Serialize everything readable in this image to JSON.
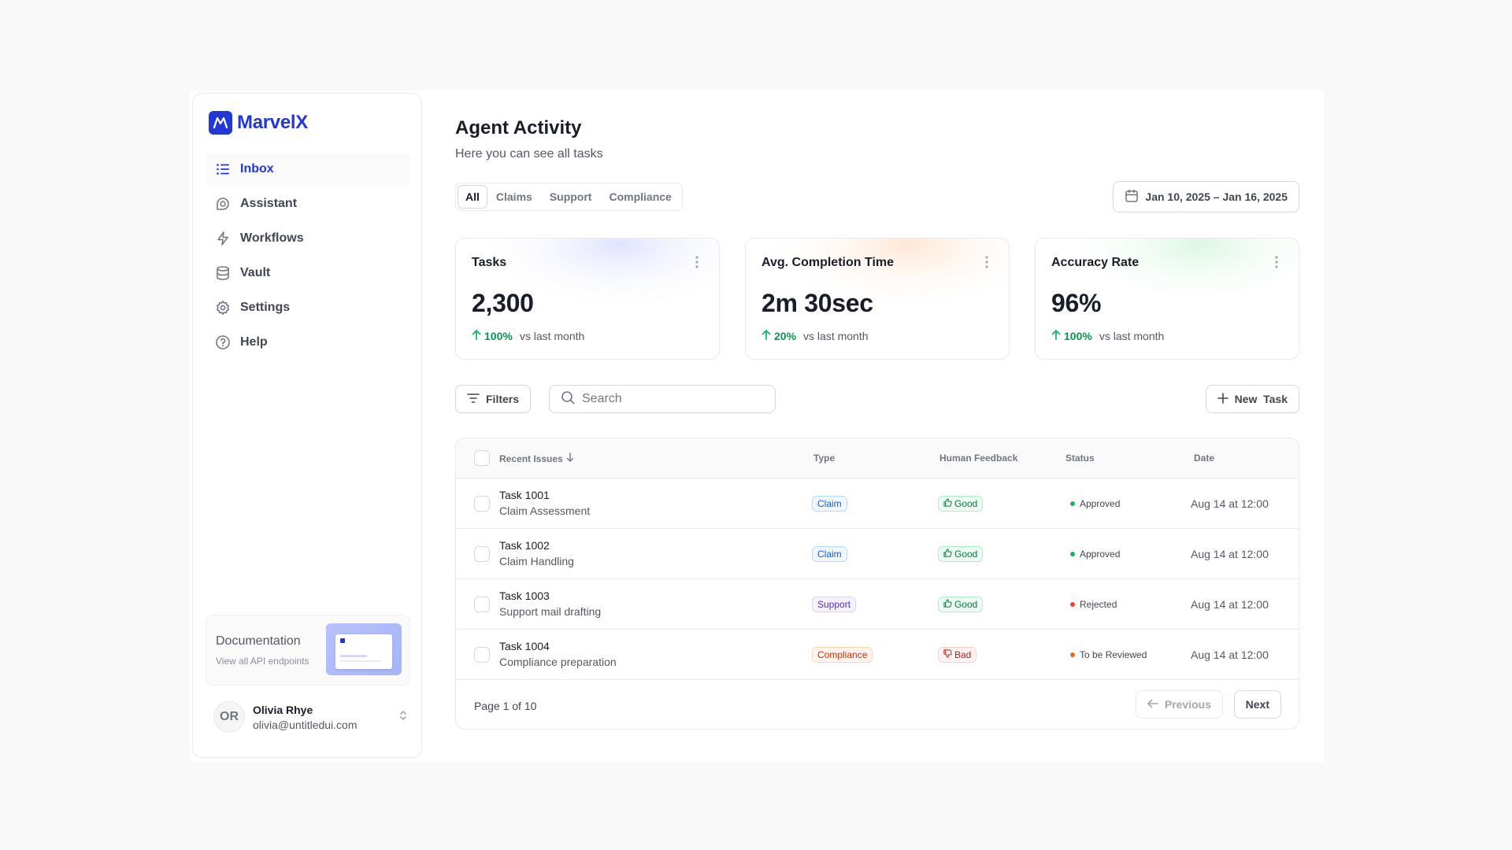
{
  "brand": {
    "name": "MarvelX",
    "accent": "#2337d6"
  },
  "sidebar": {
    "items": [
      {
        "label": "Inbox",
        "icon": "list-icon",
        "active": true
      },
      {
        "label": "Assistant",
        "icon": "chat-bubble-icon",
        "active": false
      },
      {
        "label": "Workflows",
        "icon": "lightning-icon",
        "active": false
      },
      {
        "label": "Vault",
        "icon": "database-icon",
        "active": false
      },
      {
        "label": "Settings",
        "icon": "gear-icon",
        "active": false
      },
      {
        "label": "Help",
        "icon": "help-circle-icon",
        "active": false
      }
    ],
    "doc_card": {
      "title": "Documentation",
      "subtitle": "View all API endpoints"
    },
    "user": {
      "initials": "OR",
      "name": "Olivia Rhye",
      "email": "olivia@untitledui.com"
    }
  },
  "header": {
    "title": "Agent Activity",
    "subtitle": "Here you can see all tasks"
  },
  "tabs": [
    {
      "label": "All",
      "active": true
    },
    {
      "label": "Claims",
      "active": false
    },
    {
      "label": "Support",
      "active": false
    },
    {
      "label": "Compliance",
      "active": false
    }
  ],
  "date_range": {
    "label": "Jan 10, 2025 – Jan 16, 2025",
    "icon": "calendar-icon"
  },
  "stats": [
    {
      "label": "Tasks",
      "value": "2,300",
      "trend": "100%",
      "trend_label": "vs last month",
      "glow": "#dfe3ff"
    },
    {
      "label": "Avg. Completion Time",
      "value": "2m 30sec",
      "trend": "20%",
      "trend_label": "vs last month",
      "glow": "#ffe6d5"
    },
    {
      "label": "Accuracy Rate",
      "value": "96%",
      "trend": "100%",
      "trend_label": "vs last month",
      "glow": "#dcf7e3"
    }
  ],
  "toolbar": {
    "filters_label": "Filters",
    "search_placeholder": "Search",
    "search_value": "",
    "new_task_label": "New  Task"
  },
  "table": {
    "columns": {
      "issue": "Recent Issues",
      "type": "Type",
      "feedback": "Human Feedback",
      "status": "Status",
      "date": "Date"
    },
    "rows": [
      {
        "name": "Task 1001",
        "desc": "Claim Assessment",
        "type": "Claim",
        "type_kind": "claim",
        "feedback": "Good",
        "feedback_kind": "good",
        "status": "Approved",
        "status_color": "#17b26a",
        "date": "Aug 14 at 12:00"
      },
      {
        "name": "Task 1002",
        "desc": "Claim Handling",
        "type": "Claim",
        "type_kind": "claim",
        "feedback": "Good",
        "feedback_kind": "good",
        "status": "Approved",
        "status_color": "#17b26a",
        "date": "Aug 14 at 12:00"
      },
      {
        "name": "Task 1003",
        "desc": "Support mail drafting",
        "type": "Support",
        "type_kind": "support",
        "feedback": "Good",
        "feedback_kind": "good",
        "status": "Rejected",
        "status_color": "#f04438",
        "date": "Aug 14 at 12:00"
      },
      {
        "name": "Task 1004",
        "desc": "Compliance preparation",
        "type": "Compliance",
        "type_kind": "compliance",
        "feedback": "Bad",
        "feedback_kind": "bad",
        "status": "To be Reviewed",
        "status_color": "#ef6820",
        "date": "Aug 14 at 12:00"
      }
    ],
    "pagination": {
      "page_info": "Page 1 of 10",
      "prev_label": "Previous",
      "next_label": "Next"
    }
  }
}
